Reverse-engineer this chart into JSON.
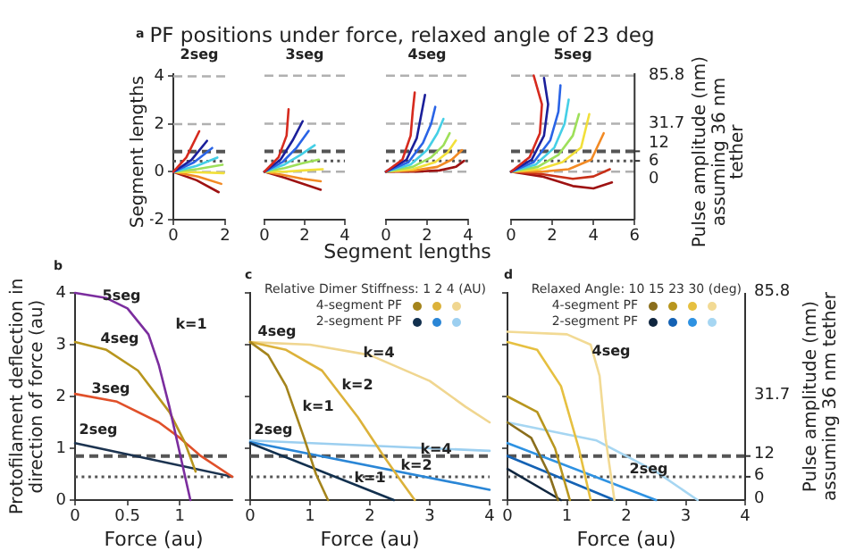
{
  "chart_data": [
    {
      "type": "line",
      "title": "PF positions under force, relaxed angle of 23 deg",
      "subtitle": "2seg",
      "ylabel": "Segment lengths",
      "annotations": [
        "a"
      ],
      "xlim": [
        0,
        2
      ],
      "xticks": [
        0,
        2
      ],
      "ylim": [
        -2,
        4.1
      ],
      "yticks": [
        -2,
        0,
        2,
        4
      ],
      "grid": "y",
      "ref_lines": [
        {
          "axis": "y",
          "value": 0.85,
          "color": "#555555",
          "line_style": "dashed"
        },
        {
          "axis": "y",
          "value": 0.45,
          "color": "#555555",
          "line_style": "dotted"
        }
      ],
      "series": [
        {
          "color": "#d62a1e",
          "x": [
            0,
            0.5,
            1.0
          ],
          "values": [
            0,
            0.6,
            1.7
          ]
        },
        {
          "color": "#1b1f9a",
          "x": [
            0,
            0.7,
            1.3
          ],
          "values": [
            0,
            0.5,
            1.3
          ]
        },
        {
          "color": "#2a64e6",
          "x": [
            0,
            0.8,
            1.5
          ],
          "values": [
            0,
            0.4,
            1.0
          ]
        },
        {
          "color": "#45cfe6",
          "x": [
            0,
            0.9,
            1.7
          ],
          "values": [
            0,
            0.25,
            0.6
          ]
        },
        {
          "color": "#9ee05a",
          "x": [
            0,
            0.95,
            1.9
          ],
          "values": [
            0,
            0.12,
            0.3
          ]
        },
        {
          "color": "#f2e03a",
          "x": [
            0,
            1.0,
            1.95
          ],
          "values": [
            0,
            -0.02,
            -0.05
          ]
        },
        {
          "color": "#f28a24",
          "x": [
            0,
            0.95,
            1.85
          ],
          "values": [
            0,
            -0.2,
            -0.5
          ]
        },
        {
          "color": "#9e1212",
          "x": [
            0,
            0.9,
            1.75
          ],
          "values": [
            0,
            -0.35,
            -0.85
          ]
        }
      ]
    },
    {
      "type": "line",
      "subtitle": "3seg",
      "xlabel": "Segment lengths",
      "xlim": [
        0,
        4
      ],
      "xticks": [
        0,
        2,
        4
      ],
      "ylim": [
        -2,
        4.1
      ],
      "yticks": [
        -2,
        0,
        2,
        4
      ],
      "tick_labels": "x",
      "grid": "y",
      "ref_lines": [
        {
          "axis": "y",
          "value": 0.85,
          "color": "#555555",
          "line_style": "dashed"
        },
        {
          "axis": "y",
          "value": 0.45,
          "color": "#555555",
          "line_style": "dotted"
        }
      ],
      "series": [
        {
          "color": "#d62a1e",
          "x": [
            0,
            0.7,
            1.1,
            1.2
          ],
          "values": [
            0,
            0.6,
            1.5,
            2.6
          ]
        },
        {
          "color": "#1b1f9a",
          "x": [
            0,
            0.8,
            1.4,
            1.9
          ],
          "values": [
            0,
            0.5,
            1.3,
            2.1
          ]
        },
        {
          "color": "#2a64e6",
          "x": [
            0,
            0.9,
            1.6,
            2.2
          ],
          "values": [
            0,
            0.4,
            1.0,
            1.7
          ]
        },
        {
          "color": "#45cfe6",
          "x": [
            0,
            1.0,
            1.8,
            2.5
          ],
          "values": [
            0,
            0.3,
            0.7,
            1.1
          ]
        },
        {
          "color": "#9ee05a",
          "x": [
            0,
            1.0,
            1.9,
            2.7
          ],
          "values": [
            0,
            0.15,
            0.35,
            0.5
          ]
        },
        {
          "color": "#f2e03a",
          "x": [
            0,
            1.0,
            1.9,
            2.9
          ],
          "values": [
            0,
            0,
            0.05,
            0.1
          ]
        },
        {
          "color": "#f28a24",
          "x": [
            0,
            1.0,
            1.9,
            2.8
          ],
          "values": [
            0,
            -0.15,
            -0.3,
            -0.4
          ]
        },
        {
          "color": "#9e1212",
          "x": [
            0,
            1.0,
            1.9,
            2.8
          ],
          "values": [
            0,
            -0.25,
            -0.5,
            -0.75
          ]
        }
      ]
    },
    {
      "type": "line",
      "subtitle": "4seg",
      "xlim": [
        0,
        4
      ],
      "xticks": [
        0,
        2,
        4
      ],
      "ylim": [
        -2,
        4.1
      ],
      "yticks": [
        -2,
        0,
        2,
        4
      ],
      "tick_labels": "x",
      "grid": "y",
      "ref_lines": [
        {
          "axis": "y",
          "value": 0.85,
          "color": "#555555",
          "line_style": "dashed"
        },
        {
          "axis": "y",
          "value": 0.45,
          "color": "#555555",
          "line_style": "dotted"
        }
      ],
      "series": [
        {
          "color": "#d62a1e",
          "x": [
            0,
            0.8,
            1.2,
            1.3,
            1.4
          ],
          "values": [
            0,
            0.5,
            1.5,
            2.5,
            3.3
          ]
        },
        {
          "color": "#1b1f9a",
          "x": [
            0,
            1.0,
            1.5,
            1.7,
            1.9
          ],
          "values": [
            0,
            0.5,
            1.4,
            2.3,
            3.2
          ]
        },
        {
          "color": "#2a64e6",
          "x": [
            0,
            1.1,
            1.8,
            2.2,
            2.4
          ],
          "values": [
            0,
            0.4,
            1.2,
            2.0,
            2.7
          ]
        },
        {
          "color": "#45cfe6",
          "x": [
            0,
            1.2,
            2.0,
            2.5,
            2.8
          ],
          "values": [
            0,
            0.3,
            0.9,
            1.6,
            2.2
          ]
        },
        {
          "color": "#9ee05a",
          "x": [
            0,
            1.3,
            2.2,
            2.8,
            3.1
          ],
          "values": [
            0,
            0.2,
            0.6,
            1.1,
            1.6
          ]
        },
        {
          "color": "#f2e03a",
          "x": [
            0,
            1.3,
            2.4,
            3.0,
            3.4
          ],
          "values": [
            0,
            0.1,
            0.4,
            0.8,
            1.3
          ]
        },
        {
          "color": "#f28a24",
          "x": [
            0,
            1.4,
            2.5,
            3.2,
            3.7
          ],
          "values": [
            0,
            0.05,
            0.2,
            0.5,
            0.9
          ]
        },
        {
          "color": "#9e1212",
          "x": [
            0,
            1.4,
            2.6,
            3.4,
            3.8
          ],
          "values": [
            0,
            0,
            0.05,
            0.2,
            0.45
          ]
        }
      ]
    },
    {
      "type": "line",
      "subtitle": "5seg",
      "y2label": "Pulse amplitude (nm) assuming 36 nm tether",
      "annotations": [
        "85.8",
        "31.7",
        "12",
        "6",
        "0"
      ],
      "xlim": [
        0,
        6
      ],
      "xticks": [
        0,
        2,
        4,
        6
      ],
      "ylim": [
        -2,
        4.1
      ],
      "yticks": [
        -2,
        0,
        2,
        4
      ],
      "tick_labels": "x",
      "grid": "y",
      "ref_lines": [
        {
          "axis": "y",
          "value": 0.85,
          "color": "#555555",
          "line_style": "dashed"
        },
        {
          "axis": "y",
          "value": 0.45,
          "color": "#555555",
          "line_style": "dotted"
        }
      ],
      "series": [
        {
          "color": "#d62a1e",
          "x": [
            0,
            0.9,
            1.4,
            1.5,
            1.1
          ],
          "values": [
            0,
            0.6,
            1.6,
            2.8,
            4.0
          ]
        },
        {
          "color": "#1b1f9a",
          "x": [
            0,
            1.0,
            1.6,
            1.8,
            1.6
          ],
          "values": [
            0,
            0.5,
            1.5,
            2.8,
            3.9
          ]
        },
        {
          "color": "#2a64e6",
          "x": [
            0,
            1.1,
            1.9,
            2.3,
            2.4
          ],
          "values": [
            0,
            0.4,
            1.3,
            2.5,
            3.6
          ]
        },
        {
          "color": "#45cfe6",
          "x": [
            0,
            1.2,
            2.1,
            2.6,
            2.8
          ],
          "values": [
            0,
            0.3,
            1.0,
            2.0,
            3.0
          ]
        },
        {
          "color": "#9ee05a",
          "x": [
            0,
            1.3,
            2.3,
            3.0,
            3.3
          ],
          "values": [
            0,
            0.2,
            0.7,
            1.5,
            2.4
          ]
        },
        {
          "color": "#f2e03a",
          "x": [
            0,
            1.4,
            2.5,
            3.4,
            3.8
          ],
          "values": [
            0,
            0.1,
            0.4,
            1.0,
            2.4
          ]
        },
        {
          "color": "#f28a24",
          "x": [
            0,
            1.5,
            2.8,
            3.9,
            4.5
          ],
          "values": [
            0,
            0,
            0.1,
            0.5,
            1.6
          ]
        },
        {
          "color": "#c83018",
          "x": [
            0,
            1.5,
            3.0,
            4.0,
            4.8
          ],
          "values": [
            0,
            -0.1,
            -0.3,
            -0.2,
            0.1
          ]
        },
        {
          "color": "#9e1212",
          "x": [
            0,
            1.5,
            3.0,
            4.0,
            4.9
          ],
          "values": [
            0,
            -0.2,
            -0.6,
            -0.7,
            -0.45
          ]
        }
      ]
    },
    {
      "type": "line",
      "xlabel": "Force (au)",
      "ylabel": "Protofilament deflection in direction of force (au)",
      "xlim": [
        0,
        1.5
      ],
      "xticks": [
        0,
        0.5,
        1
      ],
      "ylim": [
        0,
        4
      ],
      "yticks": [
        0,
        1,
        2,
        3,
        4
      ],
      "annotations": [
        "b",
        "k=1"
      ],
      "ref_lines": [
        {
          "axis": "y",
          "value": 0.85,
          "color": "#555555",
          "line_style": "dashed"
        },
        {
          "axis": "y",
          "value": 0.45,
          "color": "#555555",
          "line_style": "dotted"
        }
      ],
      "series": [
        {
          "name": "5seg",
          "color": "#7b2d9e",
          "x": [
            0,
            0.3,
            0.5,
            0.7,
            0.8,
            0.9,
            1.0,
            1.1
          ],
          "values": [
            4,
            3.9,
            3.7,
            3.2,
            2.6,
            1.8,
            0.9,
            0
          ]
        },
        {
          "name": "4seg",
          "color": "#b8961e",
          "x": [
            0,
            0.3,
            0.6,
            0.9,
            1.05,
            1.15
          ],
          "values": [
            3.05,
            2.9,
            2.5,
            1.7,
            1.1,
            0.55
          ]
        },
        {
          "name": "3seg",
          "color": "#e0502a",
          "x": [
            0,
            0.4,
            0.8,
            1.0,
            1.2,
            1.5
          ],
          "values": [
            2.05,
            1.9,
            1.5,
            1.2,
            0.85,
            0.45
          ]
        },
        {
          "name": "2seg",
          "color": "#1c3350",
          "x": [
            0,
            1.5
          ],
          "values": [
            1.1,
            0.45
          ]
        }
      ]
    },
    {
      "type": "line",
      "xlabel": "Force (au)",
      "legend": "top right",
      "legend_title": "Relative Dimer Stiffness: 1 2 4 (AU)",
      "xlim": [
        0,
        4
      ],
      "xticks": [
        0,
        1,
        2,
        3,
        4
      ],
      "ylim": [
        0,
        4
      ],
      "yticks": [
        0,
        1,
        2,
        3,
        4
      ],
      "tick_labels": "x",
      "annotations": [
        "c",
        "4seg",
        "k=4",
        "k=2",
        "k=1",
        "2seg",
        "k=4",
        "k=2",
        "k=1"
      ],
      "ref_lines": [
        {
          "axis": "y",
          "value": 0.85,
          "color": "#555555",
          "line_style": "dashed"
        },
        {
          "axis": "y",
          "value": 0.45,
          "color": "#555555",
          "line_style": "dotted"
        }
      ],
      "series": [
        {
          "name": "4-segment PF",
          "color": "#a4841c",
          "x": [
            0,
            0.3,
            0.6,
            0.9,
            1.1,
            1.3
          ],
          "values": [
            3.05,
            2.8,
            2.2,
            1.2,
            0.5,
            0
          ]
        },
        {
          "color": "#dcb23a",
          "x": [
            0,
            0.6,
            1.2,
            1.8,
            2.2,
            2.5,
            2.75
          ],
          "values": [
            3.05,
            2.9,
            2.5,
            1.6,
            0.9,
            0.4,
            0
          ]
        },
        {
          "color": "#f0d690",
          "x": [
            0,
            1,
            2,
            3,
            3.6,
            4
          ],
          "values": [
            3.05,
            3.0,
            2.8,
            2.3,
            1.8,
            1.5
          ]
        },
        {
          "name": "2-segment PF",
          "color": "#12304e",
          "x": [
            0,
            2.4
          ],
          "values": [
            1.1,
            0
          ]
        },
        {
          "color": "#2a86d6",
          "x": [
            0,
            4
          ],
          "values": [
            1.12,
            0.2
          ]
        },
        {
          "color": "#9ccff0",
          "x": [
            0,
            4
          ],
          "values": [
            1.15,
            0.95
          ]
        }
      ]
    },
    {
      "type": "line",
      "xlabel": "Force (au)",
      "y2label": "Pulse amplitude (nm) assuming 36 nm tether",
      "legend": "top right",
      "legend_title": "Relaxed Angle: 10 15 23 30 (deg)",
      "xlim": [
        0,
        4
      ],
      "xticks": [
        0,
        1,
        2,
        3,
        4
      ],
      "ylim": [
        0,
        4
      ],
      "yticks": [
        0,
        1,
        2,
        3,
        4
      ],
      "tick_labels": "x",
      "annotations": [
        "d",
        "4seg",
        "2seg",
        "85.8",
        "31.7",
        "12",
        "6",
        "0"
      ],
      "ref_lines": [
        {
          "axis": "y",
          "value": 0.85,
          "color": "#555555",
          "line_style": "dashed"
        },
        {
          "axis": "y",
          "value": 0.45,
          "color": "#555555",
          "line_style": "dotted"
        }
      ],
      "series": [
        {
          "name": "4-segment PF",
          "color": "#8a6e1c",
          "x": [
            0,
            0.4,
            0.7,
            0.85
          ],
          "values": [
            1.5,
            1.2,
            0.5,
            0
          ]
        },
        {
          "color": "#b8961e",
          "x": [
            0,
            0.5,
            0.8,
            1.05
          ],
          "values": [
            2.0,
            1.7,
            1.0,
            0
          ]
        },
        {
          "color": "#e6c040",
          "x": [
            0,
            0.5,
            0.9,
            1.2,
            1.4
          ],
          "values": [
            3.05,
            2.9,
            2.2,
            1.0,
            0
          ]
        },
        {
          "color": "#f2da94",
          "x": [
            0,
            1.0,
            1.4,
            1.55,
            1.65,
            1.8
          ],
          "values": [
            3.25,
            3.2,
            3.0,
            2.4,
            1.2,
            0
          ]
        },
        {
          "name": "2-segment PF",
          "color": "#10263f",
          "x": [
            0,
            0.9
          ],
          "values": [
            0.6,
            0
          ]
        },
        {
          "color": "#1462b4",
          "x": [
            0,
            1.8
          ],
          "values": [
            0.85,
            0
          ]
        },
        {
          "color": "#2e92e2",
          "x": [
            0,
            2.5
          ],
          "values": [
            1.1,
            0
          ]
        },
        {
          "color": "#a6d6f2",
          "x": [
            0,
            1.5,
            2.5,
            3.2
          ],
          "values": [
            1.5,
            1.15,
            0.55,
            0
          ]
        }
      ]
    }
  ]
}
